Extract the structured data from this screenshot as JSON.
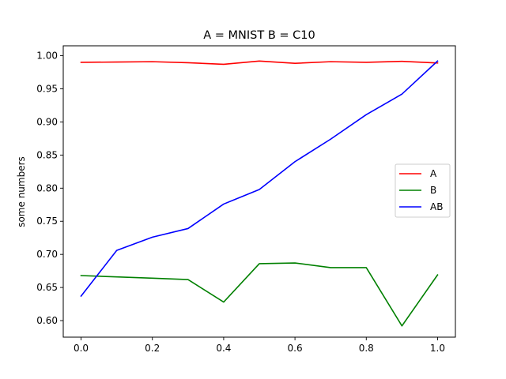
{
  "chart_data": {
    "type": "line",
    "title": "A = MNIST B = C10",
    "xlabel": "",
    "ylabel": "some numbers",
    "xlim": [
      -0.05,
      1.05
    ],
    "ylim": [
      0.575,
      1.015
    ],
    "x_ticks": [
      0.0,
      0.2,
      0.4,
      0.6,
      0.8,
      1.0
    ],
    "x_tick_labels": [
      "0.0",
      "0.2",
      "0.4",
      "0.6",
      "0.8",
      "1.0"
    ],
    "y_ticks": [
      0.6,
      0.65,
      0.7,
      0.75,
      0.8,
      0.85,
      0.9,
      0.95,
      1.0
    ],
    "y_tick_labels": [
      "0.60",
      "0.65",
      "0.70",
      "0.75",
      "0.80",
      "0.85",
      "0.90",
      "0.95",
      "1.00"
    ],
    "grid": false,
    "legend_position": "center-right",
    "x": [
      0.0,
      0.1,
      0.2,
      0.3,
      0.4,
      0.5,
      0.6,
      0.7,
      0.8,
      0.9,
      1.0
    ],
    "series": [
      {
        "name": "A",
        "color": "#ff0000",
        "values": [
          0.99,
          0.9905,
          0.991,
          0.9895,
          0.987,
          0.992,
          0.9885,
          0.991,
          0.99,
          0.9915,
          0.989
        ]
      },
      {
        "name": "B",
        "color": "#008000",
        "values": [
          0.668,
          0.666,
          0.664,
          0.662,
          0.628,
          0.686,
          0.687,
          0.68,
          0.68,
          0.592,
          0.669
        ]
      },
      {
        "name": "AB",
        "color": "#0000ff",
        "values": [
          0.637,
          0.706,
          0.726,
          0.739,
          0.776,
          0.798,
          0.84,
          0.874,
          0.911,
          0.942,
          0.992
        ]
      }
    ]
  }
}
